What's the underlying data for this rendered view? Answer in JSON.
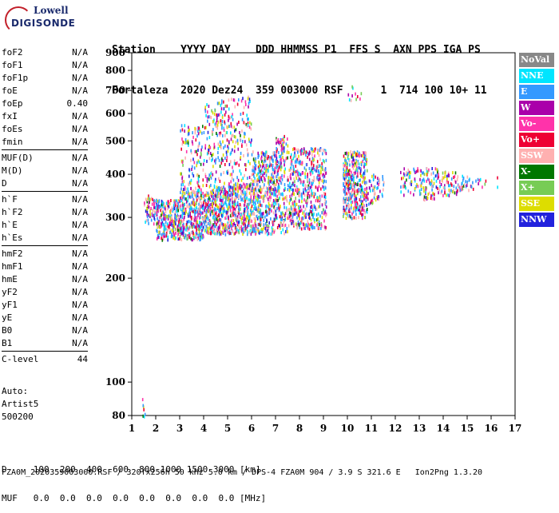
{
  "logo": {
    "line1": "Lowell",
    "line2": "DIGISONDE"
  },
  "header": {
    "line1": "Station    YYYY DAY    DDD HHMMSS P1  FFS S  AXN PPS IGA PS",
    "line2": "Fortaleza  2020 Dez24  359 003000 RSF      1  714 100 10+ 11"
  },
  "params": [
    [
      {
        "name": "foF2",
        "value": "N/A"
      },
      {
        "name": "foF1",
        "value": "N/A"
      },
      {
        "name": "foF1p",
        "value": "N/A"
      },
      {
        "name": "foE",
        "value": "N/A"
      },
      {
        "name": "foEp",
        "value": "0.40"
      },
      {
        "name": "fxI",
        "value": "N/A"
      },
      {
        "name": "foEs",
        "value": "N/A"
      },
      {
        "name": "fmin",
        "value": "N/A"
      }
    ],
    [
      {
        "name": "MUF(D)",
        "value": "N/A"
      },
      {
        "name": "M(D)",
        "value": "N/A"
      },
      {
        "name": "D",
        "value": "N/A"
      }
    ],
    [
      {
        "name": "h`F",
        "value": "N/A"
      },
      {
        "name": "h`F2",
        "value": "N/A"
      },
      {
        "name": "h`E",
        "value": "N/A"
      },
      {
        "name": "h`Es",
        "value": "N/A"
      }
    ],
    [
      {
        "name": "hmF2",
        "value": "N/A"
      },
      {
        "name": "hmF1",
        "value": "N/A"
      },
      {
        "name": "hmE",
        "value": "N/A"
      },
      {
        "name": "yF2",
        "value": "N/A"
      },
      {
        "name": "yF1",
        "value": "N/A"
      },
      {
        "name": "yE",
        "value": "N/A"
      },
      {
        "name": "B0",
        "value": "N/A"
      },
      {
        "name": "B1",
        "value": "N/A"
      }
    ],
    [
      {
        "name": "C-level",
        "value": "44"
      }
    ]
  ],
  "misc": {
    "auto": "Auto:",
    "artist": "Artist5",
    "code": "500200"
  },
  "dtable": {
    "line1": "D     100  200  400  600  800 1000 1500 3000 [km]",
    "line2": "MUF   0.0  0.0  0.0  0.0  0.0  0.0  0.0  0.0 [MHz]"
  },
  "footer": "FZA0M_2020359003000.RSF / 320fx256h 50 kHz 5.0 km / DPS-4 FZA0M 904 / 3.9 S 321.6 E   Ion2Png 1.3.20",
  "legend": [
    {
      "label": "NoVal",
      "color": "#888888"
    },
    {
      "label": "NNE",
      "color": "#00e5ff"
    },
    {
      "label": "E",
      "color": "#3399ff"
    },
    {
      "label": "W",
      "color": "#aa00aa"
    },
    {
      "label": "Vo-",
      "color": "#ff33aa"
    },
    {
      "label": "Vo+",
      "color": "#ee0033"
    },
    {
      "label": "SSW",
      "color": "#ffb0b0"
    },
    {
      "label": "X-",
      "color": "#007700"
    },
    {
      "label": "X+",
      "color": "#77cc55"
    },
    {
      "label": "SSE",
      "color": "#dddd00"
    },
    {
      "label": "NNW",
      "color": "#2222dd"
    }
  ],
  "chart_data": {
    "type": "scatter",
    "title": "",
    "xlabel": "",
    "ylabel": "",
    "xlim": [
      1,
      17
    ],
    "ylim": [
      80,
      900
    ],
    "xticks": [
      1,
      2,
      3,
      4,
      5,
      6,
      7,
      8,
      9,
      10,
      11,
      12,
      13,
      14,
      15,
      16,
      17
    ],
    "yticks": [
      80,
      100,
      200,
      300,
      400,
      500,
      600,
      700,
      800,
      900
    ],
    "y_scale": "log",
    "grid": false,
    "legend_position": "right",
    "note": "Ionogram echo clusters; frequency (MHz) vs virtual height (km)",
    "clusters": [
      {
        "x": [
          1.5,
          2.0
        ],
        "y": [
          290,
          350
        ],
        "density": 0.6
      },
      {
        "x": [
          2.0,
          3.0
        ],
        "y": [
          260,
          340
        ],
        "density": 0.9
      },
      {
        "x": [
          3.0,
          4.0
        ],
        "y": [
          260,
          360
        ],
        "density": 0.9
      },
      {
        "x": [
          3.0,
          4.0
        ],
        "y": [
          360,
          560
        ],
        "density": 0.25
      },
      {
        "x": [
          4.0,
          5.0
        ],
        "y": [
          270,
          370
        ],
        "density": 0.9
      },
      {
        "x": [
          4.0,
          5.0
        ],
        "y": [
          370,
          660
        ],
        "density": 0.25
      },
      {
        "x": [
          5.0,
          6.0
        ],
        "y": [
          270,
          380
        ],
        "density": 0.85
      },
      {
        "x": [
          5.0,
          6.0
        ],
        "y": [
          380,
          680
        ],
        "density": 0.2
      },
      {
        "x": [
          6.0,
          7.0
        ],
        "y": [
          270,
          470
        ],
        "density": 0.7
      },
      {
        "x": [
          7.0,
          7.5
        ],
        "y": [
          270,
          520
        ],
        "density": 0.5
      },
      {
        "x": [
          7.5,
          8.5
        ],
        "y": [
          280,
          480
        ],
        "density": 0.55
      },
      {
        "x": [
          8.5,
          9.1
        ],
        "y": [
          280,
          480
        ],
        "density": 0.5
      },
      {
        "x": [
          9.8,
          10.8
        ],
        "y": [
          300,
          470
        ],
        "density": 0.8
      },
      {
        "x": [
          10.8,
          11.5
        ],
        "y": [
          330,
          410
        ],
        "density": 0.3
      },
      {
        "x": [
          12.2,
          13.0
        ],
        "y": [
          350,
          420
        ],
        "density": 0.3
      },
      {
        "x": [
          13.0,
          13.8
        ],
        "y": [
          340,
          420
        ],
        "density": 0.45
      },
      {
        "x": [
          13.8,
          14.6
        ],
        "y": [
          350,
          410
        ],
        "density": 0.45
      },
      {
        "x": [
          14.6,
          15.3
        ],
        "y": [
          360,
          400
        ],
        "density": 0.35
      },
      {
        "x": [
          15.3,
          16.3
        ],
        "y": [
          370,
          395
        ],
        "density": 0.15
      },
      {
        "x": [
          10.0,
          10.6
        ],
        "y": [
          650,
          740
        ],
        "density": 0.12
      },
      {
        "x": [
          1.4,
          1.6
        ],
        "y": [
          80,
          90
        ],
        "density": 0.3
      }
    ]
  }
}
